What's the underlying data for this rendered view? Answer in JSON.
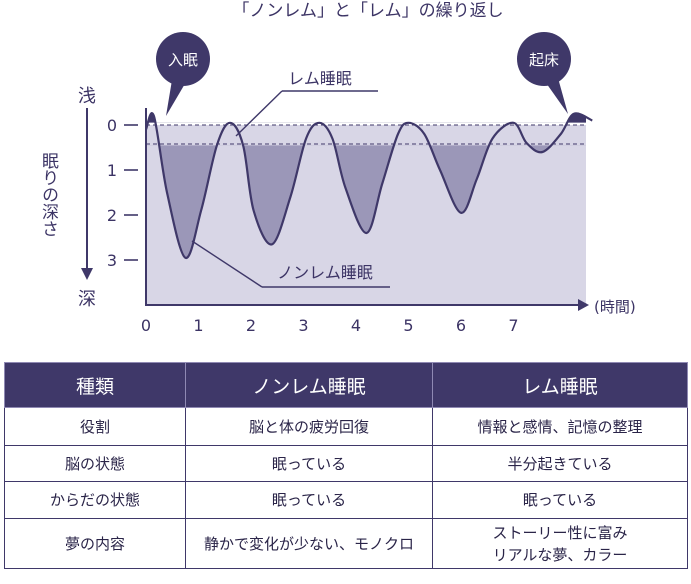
{
  "chart_data": {
    "type": "line",
    "title": "「ノンレム」と「レム」の繰り返し",
    "xlabel": "(時間)",
    "ylabel": "眠りの深さ",
    "y_top_label": "浅",
    "y_bottom_label": "深",
    "x_ticks": [
      "0",
      "1",
      "2",
      "3",
      "4",
      "5",
      "6",
      "7"
    ],
    "y_ticks": [
      "0",
      "1",
      "2",
      "3"
    ],
    "xlim": [
      0,
      8.5
    ],
    "ylim": [
      0,
      3.75
    ],
    "y_inverted": true,
    "rem_band": [
      -0.05,
      0.45
    ],
    "series": [
      {
        "x": [
          0,
          0.15,
          0.4,
          0.75,
          1.05,
          1.35,
          1.6,
          1.85,
          2.05,
          2.4,
          2.75,
          3.05,
          3.3,
          3.55,
          3.8,
          4.2,
          4.5,
          4.8,
          5.0,
          5.3,
          5.6,
          6.0,
          6.3,
          6.6,
          7.0,
          7.25,
          7.55,
          7.9,
          8.15,
          8.5
        ],
        "y": [
          0.1,
          -0.2,
          1.5,
          2.95,
          1.9,
          0.45,
          -0.05,
          0.45,
          1.9,
          2.65,
          1.6,
          0.3,
          -0.05,
          0.3,
          1.4,
          2.4,
          1.3,
          0.2,
          -0.05,
          0.2,
          1.0,
          1.95,
          1.2,
          0.3,
          -0.05,
          0.4,
          0.6,
          0.2,
          -0.25,
          -0.1
        ]
      }
    ],
    "callouts": {
      "sleep_onset": "入眠",
      "wake_up": "起床",
      "rem_label": "レム睡眠",
      "nonrem_label": "ノンレム睡眠"
    },
    "colors": {
      "dark": "#3f3869",
      "shade": "#9b97b8",
      "band": "#d8d6e6"
    }
  },
  "table": {
    "headers": [
      "種類",
      "ノンレム睡眠",
      "レム睡眠"
    ],
    "rows": [
      [
        "役割",
        "脳と体の疲労回復",
        "情報と感情、記憶の整理"
      ],
      [
        "脳の状態",
        "眠っている",
        "半分起きている"
      ],
      [
        "からだの状態",
        "眠っている",
        "眠っている"
      ],
      [
        "夢の内容",
        "静かで変化が少ない、モノクロ",
        "ストーリー性に富み\nリアルな夢、カラー"
      ]
    ]
  }
}
